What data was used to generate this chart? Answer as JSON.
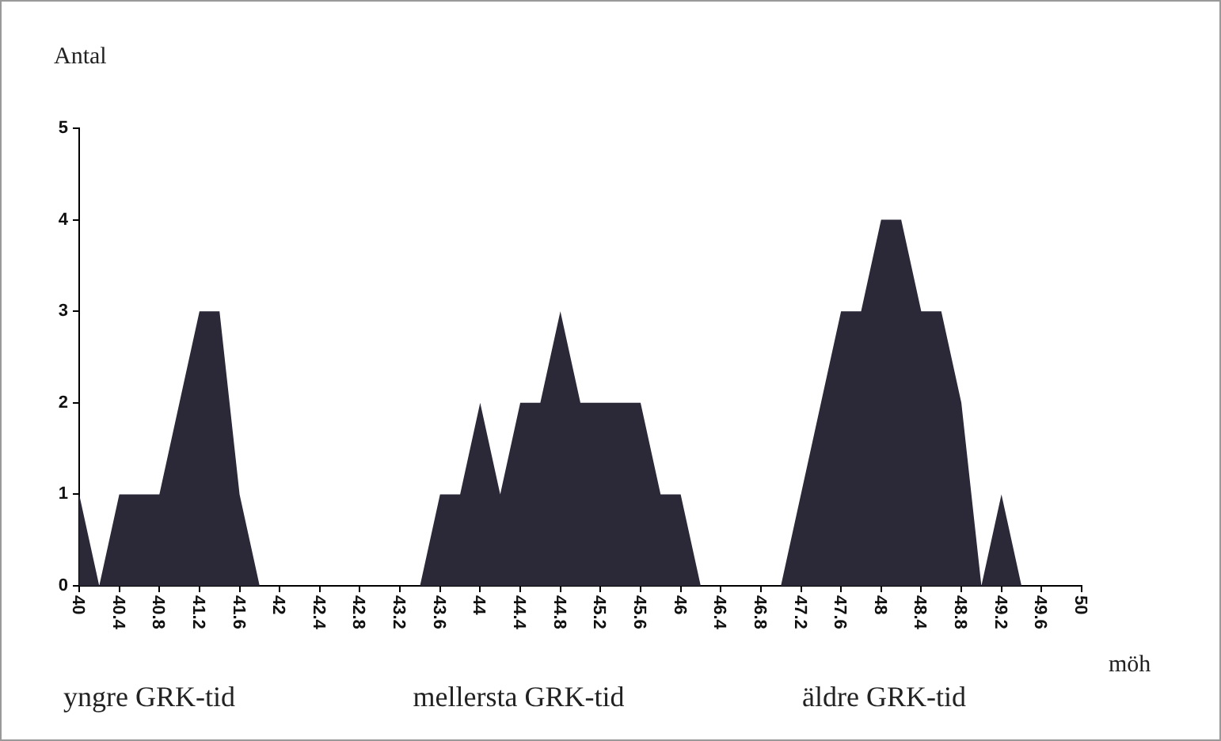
{
  "chart_data": {
    "type": "area",
    "ylabel": "Antal",
    "xlabel": "möh",
    "x": [
      40,
      40.2,
      40.4,
      40.8,
      41.2,
      41.4,
      41.6,
      41.8,
      43.4,
      43.6,
      43.8,
      44.0,
      44.2,
      44.4,
      44.6,
      44.8,
      45.0,
      45.6,
      45.8,
      46.0,
      46.2,
      47.0,
      47.6,
      47.8,
      48.0,
      48.2,
      48.4,
      48.6,
      48.8,
      49.0,
      49.2,
      49.4
    ],
    "values": [
      1,
      0,
      1,
      1,
      3,
      3,
      1,
      0,
      0,
      1,
      1,
      2,
      1,
      2,
      2,
      3,
      2,
      2,
      1,
      1,
      0,
      0,
      3,
      3,
      4,
      4,
      3,
      3,
      2,
      0,
      1,
      0
    ],
    "color": "#2b2838",
    "xlim": [
      40,
      50
    ],
    "xticks": [
      {
        "value": 40,
        "label": "40"
      },
      {
        "value": 40.4,
        "label": "40.4"
      },
      {
        "value": 40.8,
        "label": "40.8"
      },
      {
        "value": 41.2,
        "label": "41.2"
      },
      {
        "value": 41.6,
        "label": "41.6"
      },
      {
        "value": 42,
        "label": "42"
      },
      {
        "value": 42.4,
        "label": "42.4"
      },
      {
        "value": 42.8,
        "label": "42.8"
      },
      {
        "value": 43.2,
        "label": "43.2"
      },
      {
        "value": 43.6,
        "label": "43.6"
      },
      {
        "value": 44,
        "label": "44"
      },
      {
        "value": 44.4,
        "label": "44.4"
      },
      {
        "value": 44.8,
        "label": "44.8"
      },
      {
        "value": 45.2,
        "label": "45.2"
      },
      {
        "value": 45.6,
        "label": "45.6"
      },
      {
        "value": 46,
        "label": "46"
      },
      {
        "value": 46.4,
        "label": "46.4"
      },
      {
        "value": 46.8,
        "label": "46.8"
      },
      {
        "value": 47.2,
        "label": "47.2"
      },
      {
        "value": 47.6,
        "label": "47.6"
      },
      {
        "value": 48,
        "label": "48"
      },
      {
        "value": 48.4,
        "label": "48.4"
      },
      {
        "value": 48.8,
        "label": "48.8"
      },
      {
        "value": 49.2,
        "label": "49.2"
      },
      {
        "value": 49.6,
        "label": "49.6"
      },
      {
        "value": 50,
        "label": "50"
      }
    ],
    "ylim": [
      0,
      5
    ],
    "yticks": [
      0,
      1,
      2,
      3,
      4,
      5
    ],
    "grid": false,
    "legend": false,
    "annotations": [
      "yngre GRK-tid",
      "mellersta GRK-tid",
      "äldre GRK-tid"
    ]
  }
}
